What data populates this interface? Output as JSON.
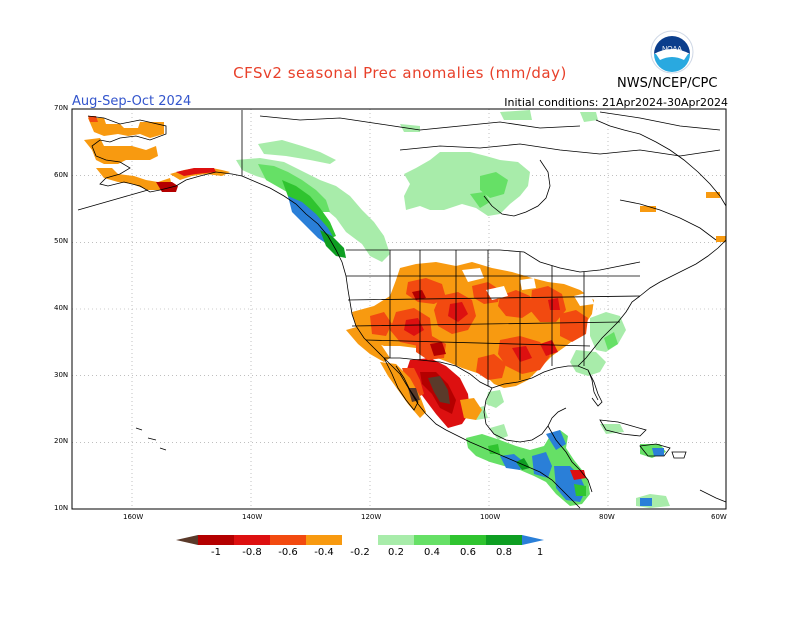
{
  "title": "CFSv2 seasonal Prec anomalies (mm/day)",
  "period": "Aug-Sep-Oct 2024",
  "initial_conditions": "Initial conditions: 21Apr2024-30Apr2024",
  "agency": "NWS/NCEP/CPC",
  "logo": {
    "name": "noaa-logo",
    "text": "NOAA"
  },
  "latitude_labels": [
    "70N",
    "60N",
    "50N",
    "40N",
    "30N",
    "20N",
    "10N"
  ],
  "longitude_labels": [
    "160W",
    "140W",
    "120W",
    "100W",
    "80W",
    "60W"
  ],
  "colorbar": {
    "labels": [
      "-1",
      "-0.8",
      "-0.6",
      "-0.4",
      "-0.2",
      "0.2",
      "0.4",
      "0.6",
      "0.8",
      "1"
    ],
    "colors": [
      "#5a3a2a",
      "#b40000",
      "#dd1010",
      "#f24a10",
      "#f89a10",
      "#ffffff",
      "#a8ecaa",
      "#66e066",
      "#2fc42f",
      "#0e9e22",
      "#2a7fd8"
    ]
  },
  "colors": {
    "title": "#e8402a",
    "period": "#3355cc",
    "land_outline": "#000000",
    "grid": "#999999"
  }
}
